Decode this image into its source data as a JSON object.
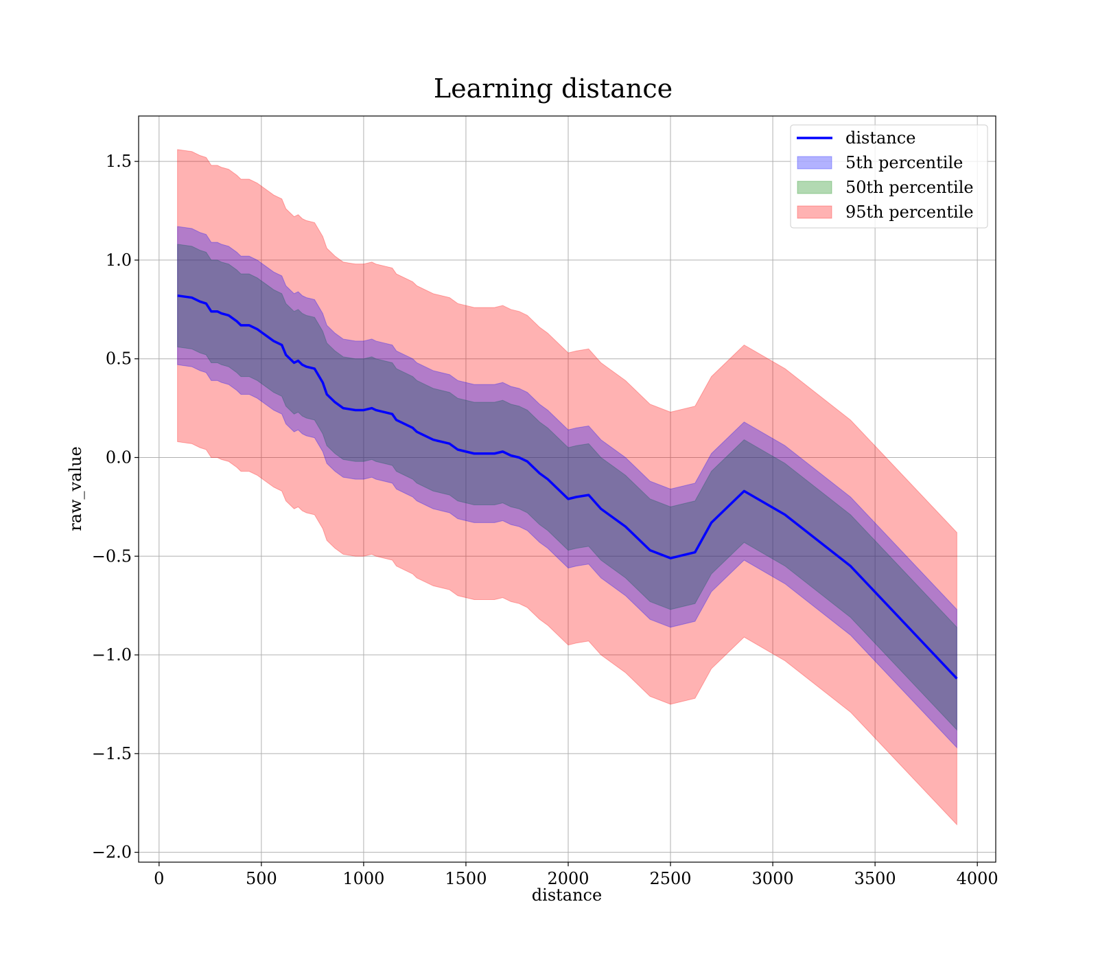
{
  "chart_data": {
    "type": "area",
    "title": "Learning distance",
    "xlabel": "distance",
    "ylabel": "raw_value",
    "xlim": [
      -100,
      4090
    ],
    "ylim": [
      -2.05,
      1.73
    ],
    "xticks": [
      0,
      500,
      1000,
      1500,
      2000,
      2500,
      3000,
      3500,
      4000
    ],
    "xtick_labels": [
      "0",
      "500",
      "1000",
      "1500",
      "2000",
      "2500",
      "3000",
      "3500",
      "4000"
    ],
    "yticks": [
      1.5,
      1.0,
      0.5,
      0.0,
      -0.5,
      -1.0,
      -1.5,
      -2.0
    ],
    "ytick_labels": [
      "1.5",
      "1.0",
      "0.5",
      "0.0",
      "−0.5",
      "−1.0",
      "−1.5",
      "−2.0"
    ],
    "grid": true,
    "legend_position": "top-right",
    "x": [
      90,
      160,
      200,
      230,
      255,
      285,
      305,
      340,
      380,
      400,
      420,
      440,
      480,
      520,
      560,
      580,
      600,
      620,
      660,
      680,
      700,
      720,
      760,
      800,
      820,
      840,
      860,
      900,
      960,
      1000,
      1040,
      1060,
      1100,
      1140,
      1160,
      1200,
      1240,
      1260,
      1300,
      1340,
      1380,
      1420,
      1460,
      1500,
      1540,
      1560,
      1600,
      1640,
      1680,
      1720,
      1760,
      1800,
      1860,
      1900,
      2000,
      2040,
      2100,
      2160,
      2280,
      2400,
      2500,
      2620,
      2700,
      2860,
      3060,
      3380,
      3900
    ],
    "series": [
      {
        "name": "distance",
        "kind": "line",
        "color": "#0000ff",
        "values": [
          0.82,
          0.81,
          0.79,
          0.78,
          0.74,
          0.74,
          0.73,
          0.72,
          0.69,
          0.67,
          0.67,
          0.67,
          0.65,
          0.62,
          0.59,
          0.58,
          0.57,
          0.52,
          0.48,
          0.49,
          0.47,
          0.46,
          0.45,
          0.38,
          0.32,
          0.3,
          0.28,
          0.25,
          0.24,
          0.24,
          0.25,
          0.24,
          0.23,
          0.22,
          0.19,
          0.17,
          0.15,
          0.13,
          0.11,
          0.09,
          0.08,
          0.07,
          0.04,
          0.03,
          0.02,
          0.02,
          0.02,
          0.02,
          0.03,
          0.01,
          0.0,
          -0.02,
          -0.08,
          -0.11,
          -0.21,
          -0.2,
          -0.19,
          -0.26,
          -0.35,
          -0.47,
          -0.51,
          -0.48,
          -0.33,
          -0.17,
          -0.29,
          -0.55,
          -1.12
        ]
      },
      {
        "name": "5th percentile",
        "kind": "band",
        "color": "#0000ff",
        "opacity": 0.3,
        "offset_low": 0.35,
        "offset_high": 0.35
      },
      {
        "name": "50th percentile",
        "kind": "band",
        "color": "#008000",
        "opacity": 0.3,
        "offset_low": 0.26,
        "offset_high": 0.26
      },
      {
        "name": "95th percentile",
        "kind": "band",
        "color": "#ff0000",
        "opacity": 0.3,
        "offset_low": 0.74,
        "offset_high": 0.74
      }
    ]
  }
}
